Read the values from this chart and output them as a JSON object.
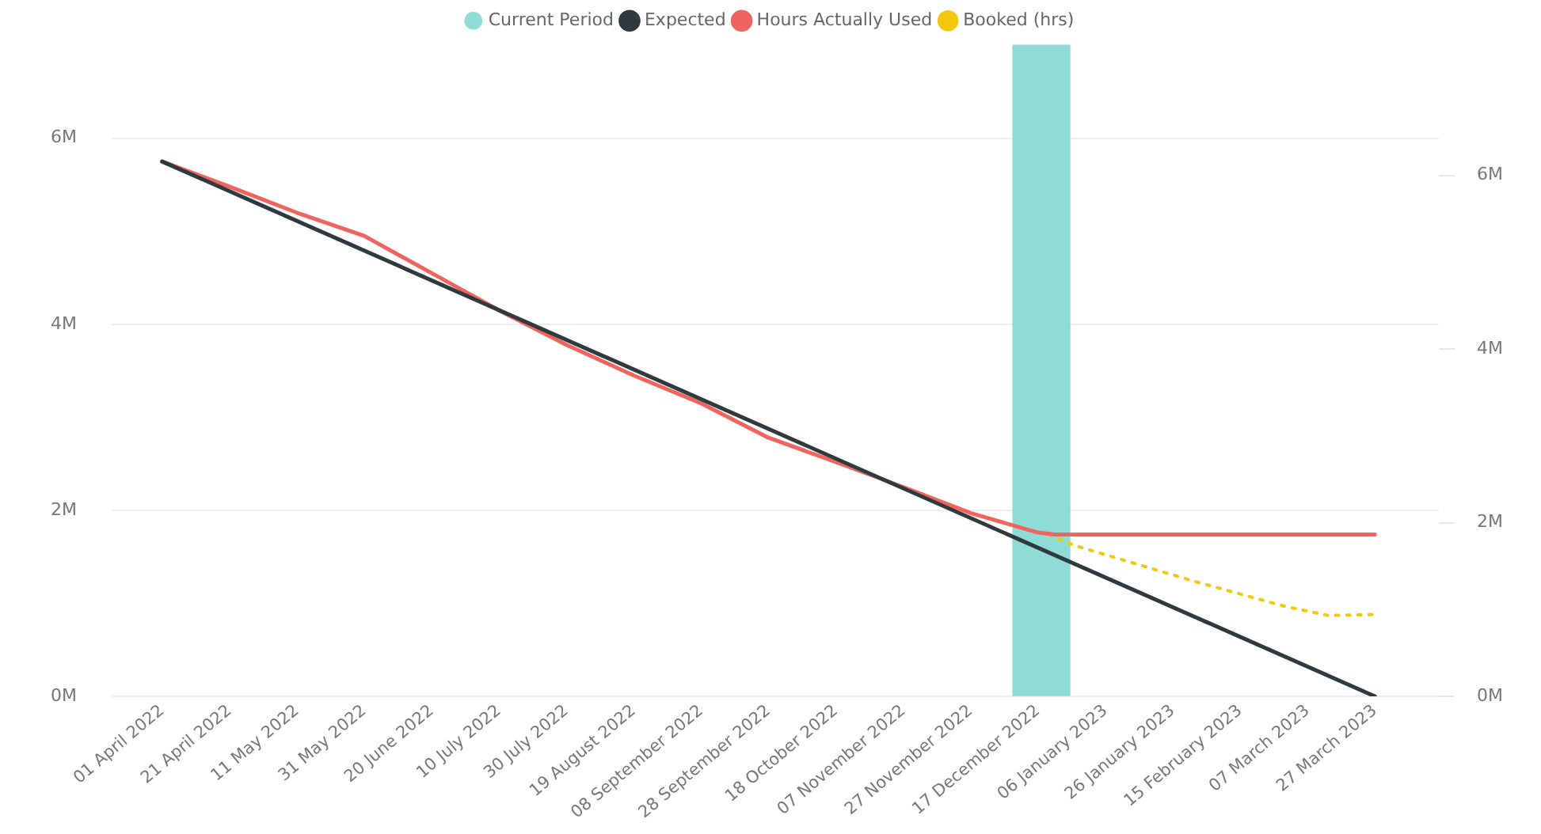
{
  "chart_data": {
    "type": "line",
    "legend": "top",
    "grid": "y",
    "marker": "none",
    "xlim": [
      "2022-03-17",
      "2023-04-15"
    ],
    "xticks": [
      {
        "value": "2022-04-01",
        "label": "01 April 2022"
      },
      {
        "value": "2022-04-21",
        "label": "21 April 2022"
      },
      {
        "value": "2022-05-11",
        "label": "11 May 2022"
      },
      {
        "value": "2022-05-31",
        "label": "31 May 2022"
      },
      {
        "value": "2022-06-20",
        "label": "20 June 2022"
      },
      {
        "value": "2022-07-10",
        "label": "10 July 2022"
      },
      {
        "value": "2022-07-30",
        "label": "30 July 2022"
      },
      {
        "value": "2022-08-19",
        "label": "19 August 2022"
      },
      {
        "value": "2022-09-08",
        "label": "08 September 2022"
      },
      {
        "value": "2022-09-28",
        "label": "28 September 2022"
      },
      {
        "value": "2022-10-18",
        "label": "18 October 2022"
      },
      {
        "value": "2022-11-07",
        "label": "07 November 2022"
      },
      {
        "value": "2022-11-27",
        "label": "27 November 2022"
      },
      {
        "value": "2022-12-17",
        "label": "17 December 2022"
      },
      {
        "value": "2023-01-06",
        "label": "06 January 2023"
      },
      {
        "value": "2023-01-26",
        "label": "26 January 2023"
      },
      {
        "value": "2023-02-15",
        "label": "15 February 2023"
      },
      {
        "value": "2023-03-07",
        "label": "07 March 2023"
      },
      {
        "value": "2023-03-27",
        "label": "27 March 2023"
      }
    ],
    "ylim": [
      0,
      7000000
    ],
    "yticks": [
      {
        "value": 0,
        "label": "0M"
      },
      {
        "value": 2000000,
        "label": "2M"
      },
      {
        "value": 4000000,
        "label": "4M"
      },
      {
        "value": 6000000,
        "label": "6M"
      }
    ],
    "y2lim": [
      0,
      7500000
    ],
    "y2ticks": [
      {
        "value": 0,
        "label": "0M"
      },
      {
        "value": 2000000,
        "label": "2M"
      },
      {
        "value": 4000000,
        "label": "4M"
      },
      {
        "value": 6000000,
        "label": "6M"
      }
    ],
    "series": [
      {
        "name": "Current Period",
        "type": "bar",
        "axis": "y2",
        "color": "#8fdcd6",
        "x": [
          "2022-12-18"
        ],
        "values": [
          7500000
        ]
      },
      {
        "name": "Expected",
        "color": "#2f3a3f",
        "line_style": "solid",
        "x": [
          "2022-04-01",
          "2023-03-27"
        ],
        "values": [
          5750000,
          0
        ]
      },
      {
        "name": "Hours Actually Used",
        "color": "#f0645f",
        "line_style": "solid",
        "x": [
          "2022-04-01",
          "2022-04-21",
          "2022-05-11",
          "2022-05-31",
          "2022-06-20",
          "2022-07-10",
          "2022-07-30",
          "2022-08-19",
          "2022-09-08",
          "2022-09-28",
          "2022-10-18",
          "2022-11-07",
          "2022-11-27",
          "2022-12-17",
          "2022-12-22",
          "2023-03-27"
        ],
        "values": [
          5750000,
          5480000,
          5200000,
          4950000,
          4550000,
          4150000,
          3780000,
          3450000,
          3150000,
          2780000,
          2520000,
          2250000,
          1970000,
          1760000,
          1740000,
          1740000
        ]
      },
      {
        "name": "Booked (hrs)",
        "color": "#f2c80f",
        "line_style": "dotted",
        "x": [
          "2022-12-20",
          "2022-12-28",
          "2023-02-02",
          "2023-02-28",
          "2023-03-13",
          "2023-03-27"
        ],
        "values": [
          1740000,
          1620000,
          1230000,
          970000,
          870000,
          880000
        ]
      }
    ]
  }
}
